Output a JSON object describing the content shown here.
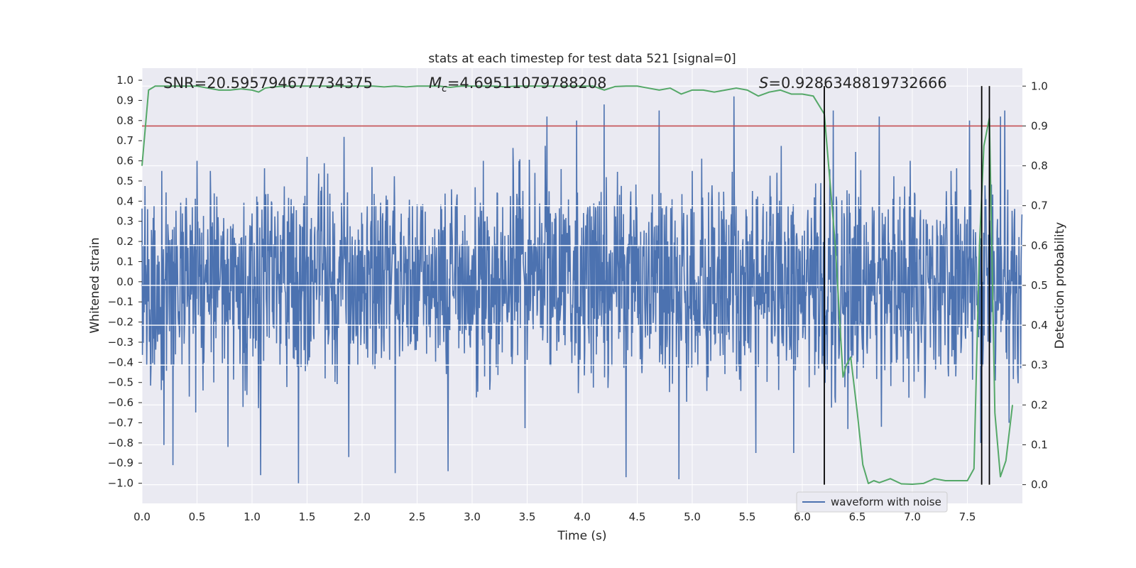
{
  "chart_data": {
    "type": "line",
    "title": "stats at each timestep for test data 521 [signal=0]",
    "xlabel": "Time (s)",
    "ylabel": "Whitened strain",
    "y2label": "Detection probability",
    "xlim": [
      0.0,
      8.0
    ],
    "ylim": [
      -1.1,
      1.06
    ],
    "y2lim": [
      -0.047,
      1.045
    ],
    "xticks": [
      "0.0",
      "0.5",
      "1.0",
      "1.5",
      "2.0",
      "2.5",
      "3.0",
      "3.5",
      "4.0",
      "4.5",
      "5.0",
      "5.5",
      "6.0",
      "6.5",
      "7.0",
      "7.5"
    ],
    "yticks": [
      "1.0",
      "0.9",
      "0.8",
      "0.7",
      "0.6",
      "0.5",
      "0.4",
      "0.3",
      "0.2",
      "0.1",
      "0.0",
      "-0.1",
      "-0.2",
      "-0.3",
      "-0.4",
      "-0.5",
      "-0.6",
      "-0.7",
      "-0.8",
      "-0.9",
      "-1.0"
    ],
    "y2ticks": [
      "1.0",
      "0.9",
      "0.8",
      "0.7",
      "0.6",
      "0.5",
      "0.4",
      "0.3",
      "0.2",
      "0.1",
      "0.0"
    ],
    "annotations": {
      "snr": "SNR=20.595794677734375",
      "mc_sym": "M",
      "mc_sub": "c",
      "mc_val": "=4.69511079788208",
      "s_sym": "S",
      "s_val": "=0.9286348819732666"
    },
    "legend": {
      "label": "waveform with noise",
      "loc": "lower right"
    },
    "threshold": {
      "value": 0.9,
      "axis": "right",
      "color": "#c44e52"
    },
    "vlines": [
      6.2,
      7.63,
      7.7
    ],
    "series": [
      {
        "name": "waveform with noise",
        "axis": "left",
        "color": "#4c72b0",
        "sample_rate": 256,
        "seed": 521,
        "envelope": 0.4,
        "peaks": [
          [
            0.05,
            0.36
          ],
          [
            0.18,
            0.55
          ],
          [
            0.2,
            -0.81
          ],
          [
            0.28,
            -0.91
          ],
          [
            0.5,
            0.6
          ],
          [
            0.62,
            0.55
          ],
          [
            0.78,
            0.82
          ],
          [
            0.78,
            -0.82
          ],
          [
            1.08,
            -0.96
          ],
          [
            1.42,
            0.81
          ],
          [
            1.42,
            -1.0
          ],
          [
            1.5,
            0.62
          ],
          [
            1.88,
            -0.87
          ],
          [
            2.3,
            -0.95
          ],
          [
            2.78,
            0.93
          ],
          [
            2.78,
            -0.94
          ],
          [
            3.1,
            0.6
          ],
          [
            3.68,
            0.82
          ],
          [
            3.95,
            0.8
          ],
          [
            4.2,
            0.88
          ],
          [
            4.4,
            -0.97
          ],
          [
            4.7,
            0.85
          ],
          [
            4.88,
            -0.98
          ],
          [
            5.0,
            0.55
          ],
          [
            5.38,
            0.92
          ],
          [
            5.58,
            -0.85
          ],
          [
            5.92,
            0.68
          ],
          [
            5.92,
            -0.85
          ],
          [
            6.28,
            0.85
          ],
          [
            6.3,
            -0.6
          ],
          [
            6.7,
            0.82
          ],
          [
            6.72,
            -0.72
          ],
          [
            6.98,
            0.6
          ],
          [
            7.35,
            0.55
          ],
          [
            7.52,
            0.8
          ],
          [
            7.62,
            -0.8
          ],
          [
            7.8,
            0.82
          ],
          [
            7.84,
            0.85
          ],
          [
            7.88,
            -0.7
          ]
        ]
      },
      {
        "name": "detection probability",
        "axis": "right",
        "color": "#55a868",
        "x": [
          0.0,
          0.06,
          0.12,
          0.2,
          0.3,
          0.4,
          0.5,
          0.6,
          0.7,
          0.8,
          0.9,
          1.0,
          1.06,
          1.12,
          1.2,
          1.3,
          1.4,
          1.5,
          1.6,
          1.7,
          1.8,
          1.9,
          2.0,
          2.1,
          2.2,
          2.3,
          2.4,
          2.5,
          2.6,
          2.7,
          2.8,
          2.9,
          3.0,
          3.1,
          3.2,
          3.3,
          3.4,
          3.5,
          3.6,
          3.7,
          3.8,
          3.9,
          4.0,
          4.1,
          4.2,
          4.3,
          4.4,
          4.5,
          4.6,
          4.7,
          4.8,
          4.9,
          5.0,
          5.1,
          5.2,
          5.3,
          5.4,
          5.5,
          5.6,
          5.7,
          5.8,
          5.9,
          6.0,
          6.1,
          6.2,
          6.3,
          6.37,
          6.4,
          6.44,
          6.5,
          6.55,
          6.6,
          6.65,
          6.7,
          6.8,
          6.9,
          7.0,
          7.1,
          7.2,
          7.3,
          7.4,
          7.5,
          7.56,
          7.61,
          7.65,
          7.7,
          7.75,
          7.8,
          7.85,
          7.91
        ],
        "values": [
          0.8,
          0.99,
          1.0,
          1.0,
          1.0,
          1.0,
          1.0,
          0.995,
          0.99,
          0.99,
          0.993,
          0.99,
          0.985,
          0.995,
          0.998,
          1.0,
          1.0,
          1.0,
          1.0,
          1.0,
          1.0,
          1.0,
          1.0,
          1.0,
          0.998,
          1.0,
          0.998,
          1.0,
          1.0,
          1.0,
          0.997,
          1.0,
          1.0,
          1.0,
          1.0,
          0.998,
          1.0,
          1.0,
          1.0,
          1.0,
          1.0,
          1.0,
          1.0,
          1.0,
          0.99,
          0.999,
          1.0,
          1.0,
          0.995,
          0.99,
          0.995,
          0.98,
          0.99,
          0.99,
          0.985,
          0.99,
          0.995,
          0.99,
          0.975,
          0.985,
          0.99,
          0.98,
          0.98,
          0.975,
          0.93,
          0.6,
          0.27,
          0.3,
          0.32,
          0.18,
          0.05,
          0.003,
          0.01,
          0.005,
          0.015,
          0.002,
          0.001,
          0.003,
          0.015,
          0.01,
          0.01,
          0.01,
          0.04,
          0.6,
          0.85,
          0.92,
          0.18,
          0.02,
          0.06,
          0.2
        ]
      }
    ]
  }
}
